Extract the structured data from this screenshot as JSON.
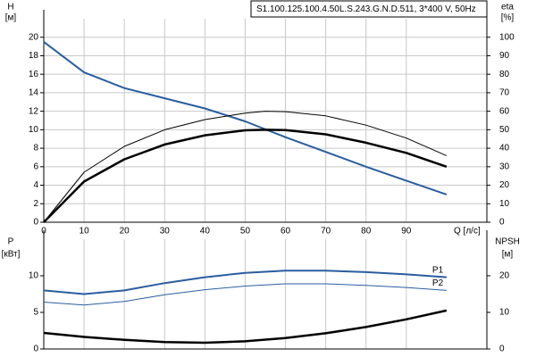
{
  "chart_data": [
    {
      "type": "line",
      "title": "S1.100.125.100.4.50L.S.243.G.N.D.511, 3*400 V, 50Hz",
      "y_label": [
        "H",
        "[м]"
      ],
      "y2_label": [
        "eta",
        "[%]"
      ],
      "x_label": "Q [л/с]",
      "xlim": [
        0,
        110
      ],
      "xticks": [
        0,
        10,
        20,
        30,
        40,
        50,
        60,
        70,
        80,
        90
      ],
      "ylim": [
        0,
        22
      ],
      "yticks": [
        0,
        2,
        4,
        6,
        8,
        10,
        12,
        14,
        16,
        18,
        20
      ],
      "y2lim": [
        0,
        110
      ],
      "y2ticks": [
        0,
        10,
        20,
        30,
        40,
        50,
        60,
        70,
        80,
        90,
        100
      ],
      "grid": true,
      "series": [
        {
          "color": "#2a5d9f",
          "line_width": 2,
          "x": [
            0,
            10,
            20,
            30,
            40,
            50,
            60,
            70,
            80,
            90,
            100
          ],
          "values": [
            19.5,
            16.2,
            14.5,
            13.4,
            12.3,
            10.9,
            9.2,
            7.6,
            6.0,
            4.5,
            3.0
          ]
        },
        {
          "color": "#000000",
          "line_width": 2.5,
          "axis": "y2",
          "x": [
            0,
            10,
            20,
            30,
            40,
            50,
            55,
            60,
            70,
            80,
            90,
            100
          ],
          "values": [
            0,
            22,
            34,
            42,
            47,
            49.7,
            50,
            49.8,
            47.5,
            43,
            37.5,
            30
          ]
        },
        {
          "color": "#000000",
          "line_width": 1,
          "axis": "y2",
          "x": [
            0,
            10,
            20,
            30,
            40,
            50,
            55,
            60,
            70,
            80,
            90,
            100
          ],
          "values": [
            0,
            27,
            41,
            50,
            55.5,
            59,
            60,
            59.8,
            57.5,
            52.5,
            45.5,
            36
          ]
        }
      ]
    },
    {
      "type": "line",
      "y_label": [
        "P",
        "[кВт]"
      ],
      "y2_label": [
        "NPSH",
        "[м]"
      ],
      "xlim": [
        0,
        110
      ],
      "ylim": [
        0,
        15
      ],
      "yticks": [
        0,
        5,
        10
      ],
      "y2lim": [
        0,
        30
      ],
      "y2ticks": [
        0,
        10,
        20
      ],
      "series": [
        {
          "name": "P1",
          "color": "#2a5d9f",
          "line_width": 2,
          "x": [
            0,
            10,
            20,
            30,
            40,
            50,
            60,
            70,
            80,
            90,
            100
          ],
          "values": [
            8,
            7.5,
            8,
            9,
            9.8,
            10.4,
            10.7,
            10.7,
            10.5,
            10.2,
            9.8
          ]
        },
        {
          "name": "P2",
          "color": "#2a5d9f",
          "line_width": 1,
          "x": [
            0,
            10,
            20,
            30,
            40,
            50,
            60,
            70,
            80,
            90,
            100
          ],
          "values": [
            6.4,
            6.0,
            6.5,
            7.4,
            8.1,
            8.6,
            8.9,
            8.9,
            8.7,
            8.4,
            8.0
          ]
        },
        {
          "color": "#000000",
          "line_width": 2.5,
          "axis": "y2",
          "x": [
            0,
            10,
            20,
            30,
            40,
            50,
            60,
            70,
            80,
            90,
            100
          ],
          "values": [
            4.4,
            3.3,
            2.5,
            1.9,
            1.7,
            2.1,
            3.0,
            4.3,
            6.0,
            8.1,
            10.5
          ]
        }
      ]
    }
  ]
}
